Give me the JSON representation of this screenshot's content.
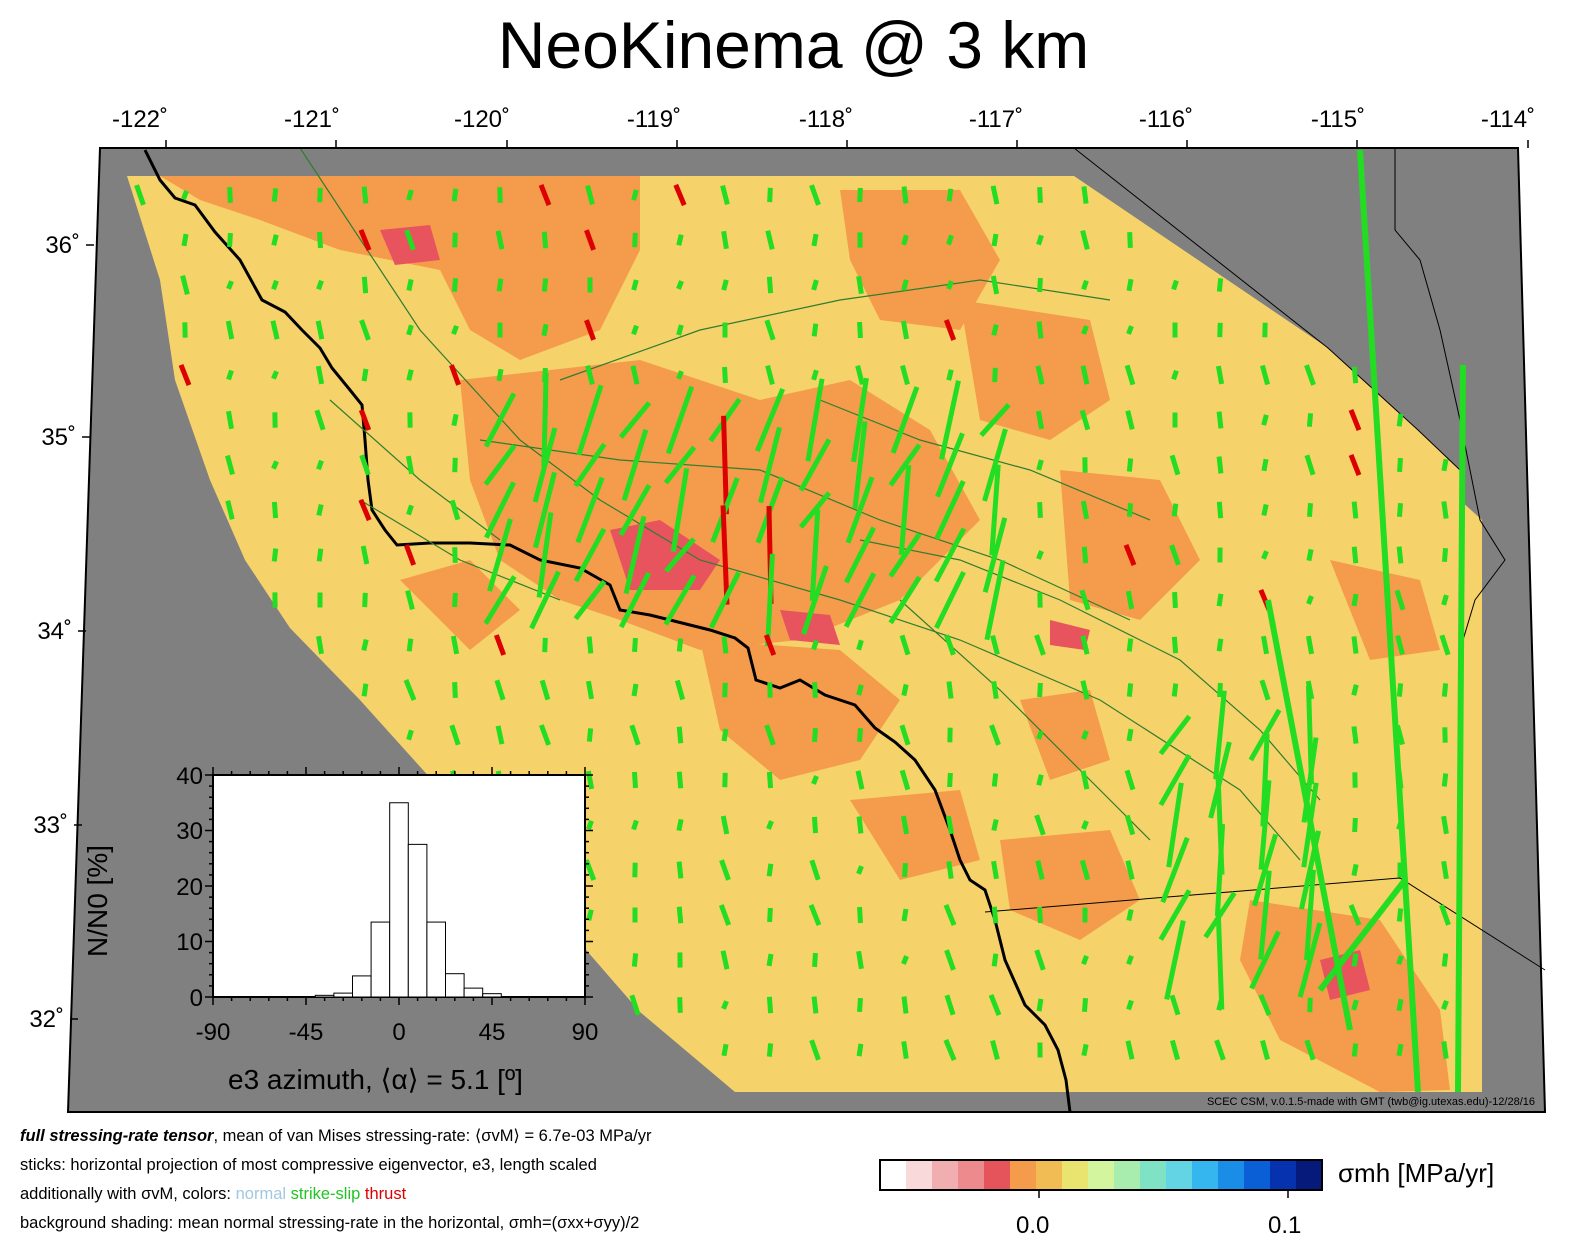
{
  "title": "NeoKinema @ 3 km",
  "map": {
    "lon_ticks": [
      "-122˚",
      "-121˚",
      "-120˚",
      "-119˚",
      "-118˚",
      "-117˚",
      "-116˚",
      "-115˚",
      "-114˚"
    ],
    "lat_ticks": [
      "36˚",
      "35˚",
      "34˚",
      "33˚",
      "32˚"
    ],
    "colors": {
      "ocean_mask": "#808080",
      "background": "#f6d36a",
      "positive": "#f59c4c",
      "negative": "#e8545e",
      "stick_strike_slip": "#22dd22",
      "stick_thrust": "#dd0000",
      "fault": "#2f7d2f",
      "coastline": "#000000"
    },
    "credit": "SCEC CSM, v.0.1.5-made with GMT (twb@ig.utexas.edu)-12/28/16"
  },
  "inset": {
    "ylabel": "N/N0 [%]",
    "xlabel": "e3 azimuth, ⟨α⟩ = 5.1 [º]",
    "x_ticks": [
      "-90",
      "-45",
      "0",
      "45",
      "90"
    ],
    "y_ticks": [
      "0",
      "10",
      "20",
      "30",
      "40"
    ]
  },
  "chart_data": {
    "type": "bar",
    "title": "",
    "xlabel": "e3 azimuth, ⟨α⟩ = 5.1 [º]",
    "ylabel": "N/N0 [%]",
    "bin_width": 9,
    "bins": [
      -40.5,
      -31.5,
      -22.5,
      -13.5,
      -4.5,
      4.5,
      13.5,
      22.5,
      31.5,
      40.5,
      49.5
    ],
    "values": [
      0.3,
      0.7,
      3.8,
      13.5,
      35,
      27.5,
      13.5,
      4.2,
      1.6,
      0.6,
      0
    ],
    "xlim": [
      -90,
      90
    ],
    "ylim": [
      0,
      40
    ]
  },
  "caption": {
    "line1_bold": "full stressing-rate tensor",
    "line1_rest": ", mean of van Mises stressing-rate: ⟨σvM⟩ = 6.7e-03 MPa/yr",
    "line2": "sticks: horizontal projection of most compressive eigenvector, e3, length scaled",
    "line3_a": "additionally with σvM, colors: ",
    "line3_normal": "normal",
    "line3_ss": "strike-slip",
    "line3_thrust": "thrust",
    "line4": "background shading: mean normal stressing-rate in the horizontal, σmh=(σxx+σyy)/2"
  },
  "colorbar": {
    "label": "σmh [MPa/yr]",
    "ticks": [
      "0.0",
      "0.1"
    ],
    "colors": [
      "#ffffff",
      "#f9d9da",
      "#f1aeb1",
      "#ec8a8e",
      "#e6545b",
      "#f59c4c",
      "#f2bc54",
      "#e9e36f",
      "#d2f59e",
      "#a8ecae",
      "#7fe2c4",
      "#62d4e4",
      "#36b6ee",
      "#1a8de6",
      "#0a5ed6",
      "#0632b0",
      "#061a7c"
    ]
  }
}
